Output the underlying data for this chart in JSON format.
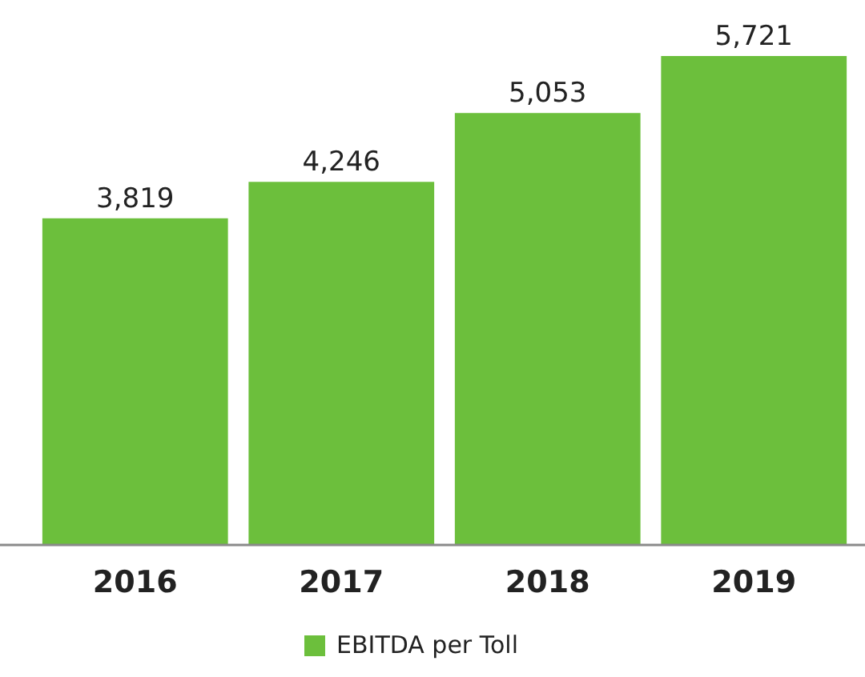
{
  "chart_data": {
    "type": "bar",
    "categories": [
      "2016",
      "2017",
      "2018",
      "2019"
    ],
    "series": [
      {
        "name": "EBITDA per Toll",
        "color": "#6cbf3c",
        "values": [
          3819,
          4246,
          5053,
          5721
        ],
        "value_labels": [
          "3,819",
          "4,246",
          "5,053",
          "5,721"
        ]
      }
    ],
    "legend": "bottom"
  }
}
